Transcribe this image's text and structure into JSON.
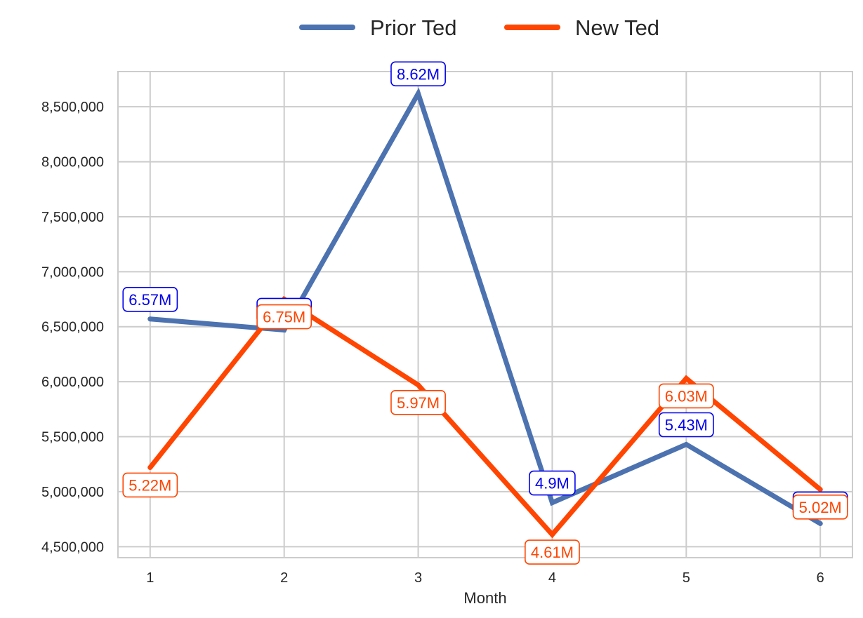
{
  "chart_data": {
    "type": "line",
    "x": [
      1,
      2,
      3,
      4,
      5,
      6
    ],
    "xlabel": "Month",
    "ylabel": "",
    "xlim": [
      0.76,
      6.24
    ],
    "ylim": [
      4400000,
      8820000
    ],
    "yticks": [
      4500000,
      5000000,
      5500000,
      6000000,
      6500000,
      7000000,
      7500000,
      8000000,
      8500000
    ],
    "ytick_labels": [
      "4,500,000",
      "5,000,000",
      "5,500,000",
      "6,000,000",
      "6,500,000",
      "7,000,000",
      "7,500,000",
      "8,000,000",
      "8,500,000"
    ],
    "xtick_labels": [
      "1",
      "2",
      "3",
      "4",
      "5",
      "6"
    ],
    "grid": true,
    "legend_position": "top-center",
    "series": [
      {
        "name": "Prior Ted",
        "color": "#4c72b0",
        "label_color": "#0000ee",
        "values": [
          6570000,
          6470000,
          8620000,
          4900000,
          5430000,
          4710000
        ],
        "labels": [
          "6.57M",
          "6.47M",
          "8.62M",
          "4.9M",
          "5.43M",
          "4.71M"
        ],
        "label_side": [
          "above",
          "above",
          "above",
          "above",
          "above",
          "above"
        ]
      },
      {
        "name": "New Ted",
        "color": "#ff4500",
        "label_color": "#ff4500",
        "values": [
          5220000,
          6750000,
          5970000,
          4610000,
          6030000,
          5020000
        ],
        "labels": [
          "5.22M",
          "6.75M",
          "5.97M",
          "4.61M",
          "6.03M",
          "5.02M"
        ],
        "label_side": [
          "below",
          "below",
          "below",
          "below",
          "below",
          "below"
        ]
      }
    ]
  }
}
